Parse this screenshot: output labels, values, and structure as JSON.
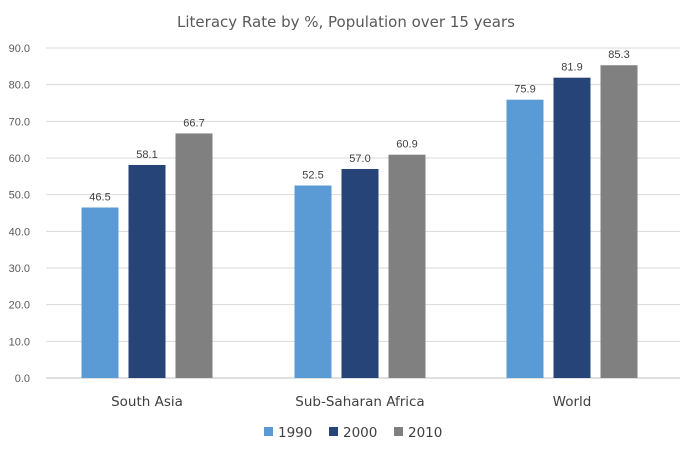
{
  "chart_data": {
    "type": "bar",
    "title": "Literacy Rate by %, Population over 15 years",
    "categories": [
      "South Asia",
      "Sub-Saharan Africa",
      "World"
    ],
    "series": [
      {
        "name": "1990",
        "color": "#5B9BD5",
        "values": [
          46.5,
          52.5,
          75.9
        ],
        "labels": [
          "46.5",
          "52.5",
          "75.9"
        ]
      },
      {
        "name": "2000",
        "color": "#264478",
        "values": [
          58.1,
          57.0,
          81.9
        ],
        "labels": [
          "58.1",
          "57.0",
          "81.9"
        ]
      },
      {
        "name": "2010",
        "color": "#808080",
        "values": [
          66.7,
          60.9,
          85.3
        ],
        "labels": [
          "66.7",
          "60.9",
          "85.3"
        ]
      }
    ],
    "yticks": [
      "0.0",
      "10.0",
      "20.0",
      "30.0",
      "40.0",
      "50.0",
      "60.0",
      "70.0",
      "80.0",
      "90.0"
    ],
    "ylim": [
      0,
      90
    ],
    "grid": true,
    "legend_position": "bottom",
    "xlabel": "",
    "ylabel": ""
  }
}
